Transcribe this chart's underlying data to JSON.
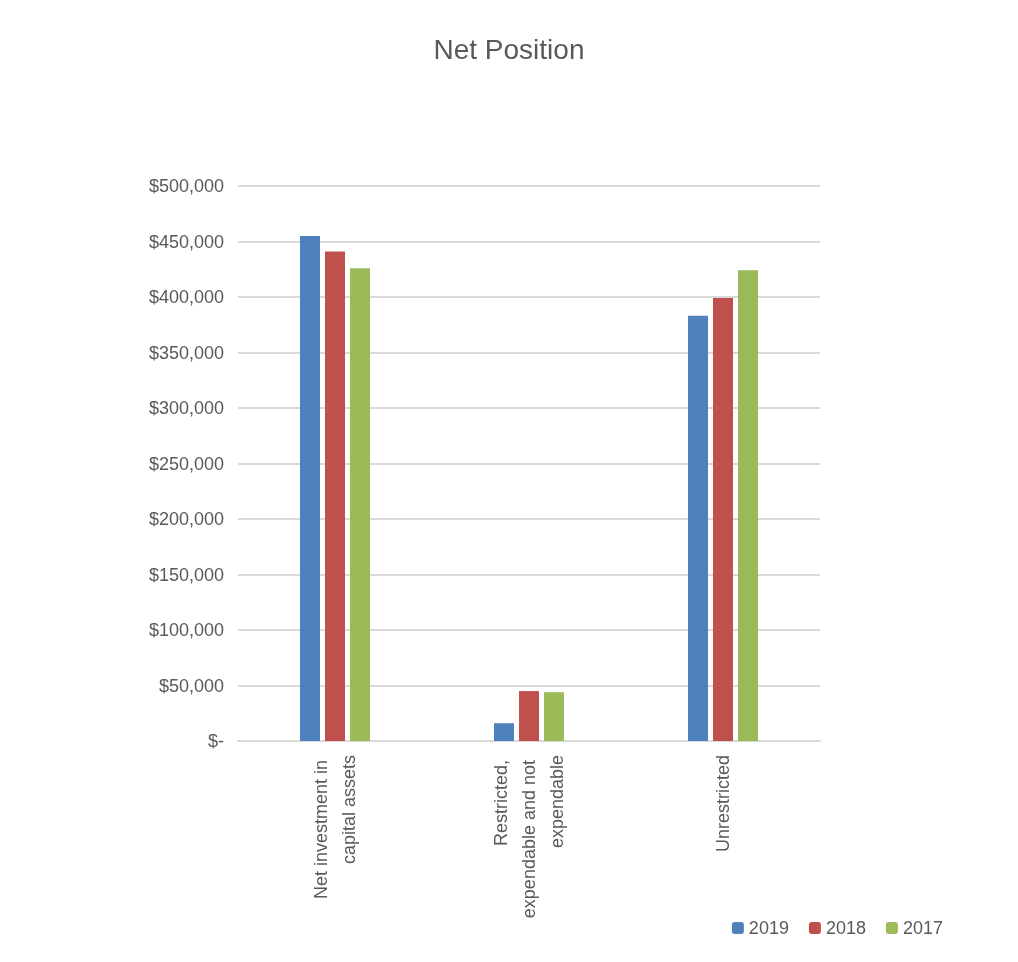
{
  "chart_data": {
    "type": "bar",
    "title": "Net Position",
    "categories": [
      "Net investment in capital assets",
      "Restricted, expendable and not expendable",
      "Unrestricted"
    ],
    "series": [
      {
        "name": "2019",
        "color": "#4f81bd",
        "values": [
          455000,
          16000,
          383000
        ]
      },
      {
        "name": "2018",
        "color": "#c0504d",
        "values": [
          441000,
          45000,
          399000
        ]
      },
      {
        "name": "2017",
        "color": "#9bbb59",
        "values": [
          426000,
          44000,
          424000
        ]
      }
    ],
    "ylim": [
      0,
      500000
    ],
    "yticks": [
      {
        "value": 0,
        "label": "$-"
      },
      {
        "value": 50000,
        "label": "$50,000"
      },
      {
        "value": 100000,
        "label": "$100,000"
      },
      {
        "value": 150000,
        "label": "$150,000"
      },
      {
        "value": 200000,
        "label": "$200,000"
      },
      {
        "value": 250000,
        "label": "$250,000"
      },
      {
        "value": 300000,
        "label": "$300,000"
      },
      {
        "value": 350000,
        "label": "$350,000"
      },
      {
        "value": 400000,
        "label": "$400,000"
      },
      {
        "value": 450000,
        "label": "$450,000"
      },
      {
        "value": 500000,
        "label": "$500,000"
      }
    ],
    "grid": "y",
    "legend": "bottom right"
  }
}
